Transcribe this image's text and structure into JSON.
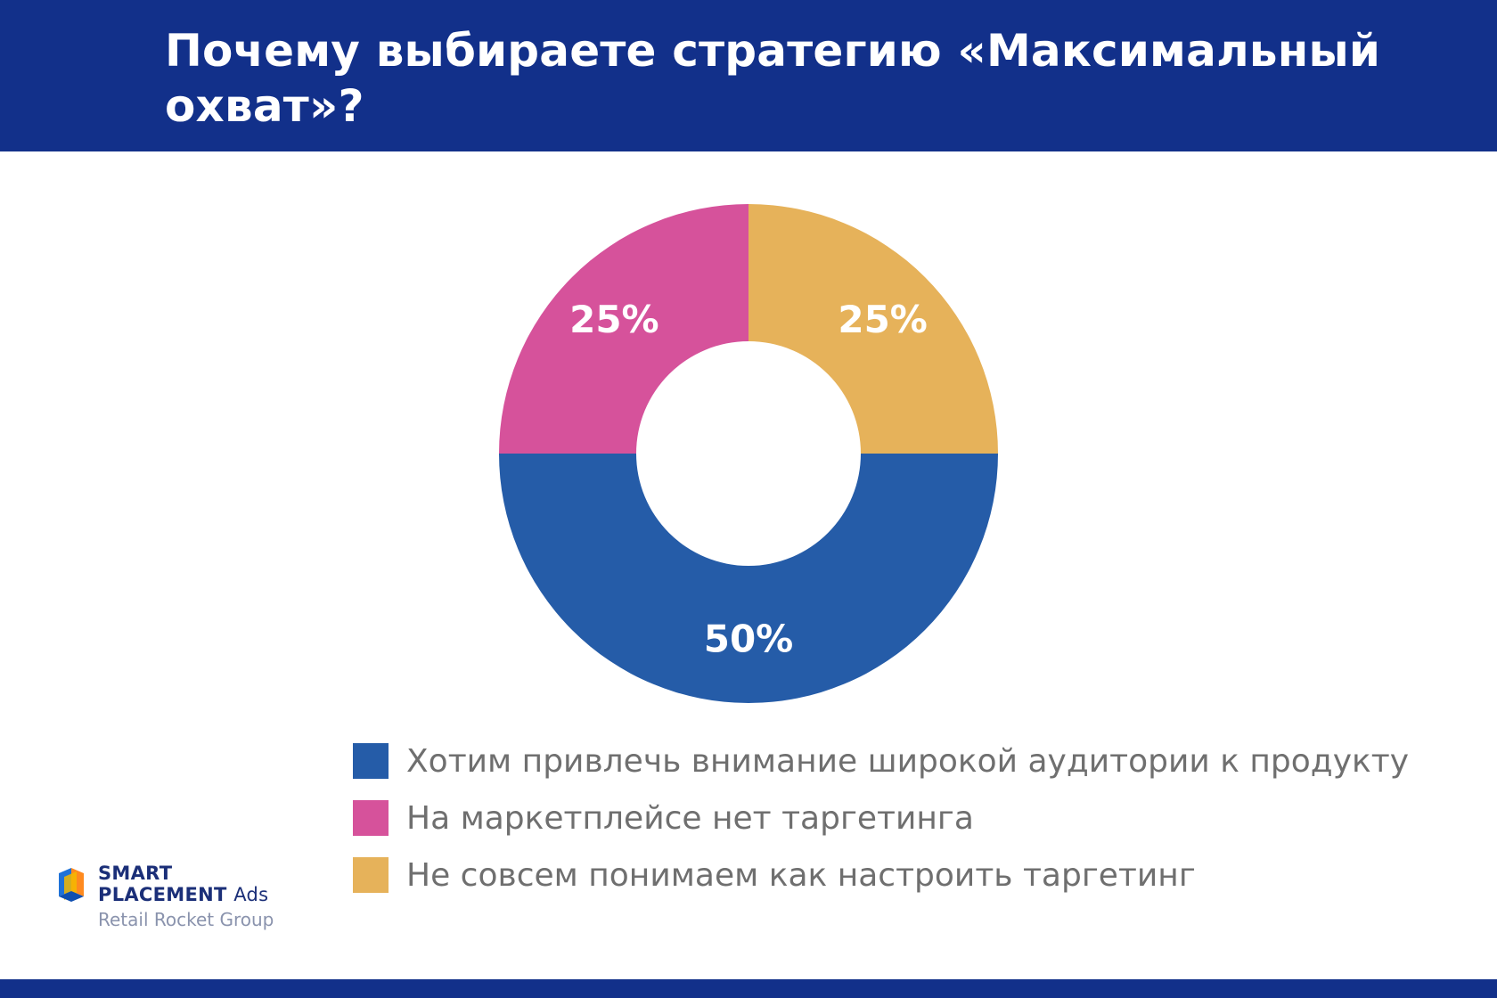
{
  "header": {
    "title": "Почему выбираете стратегию «Максимальный охват»?"
  },
  "chart_data": {
    "type": "pie",
    "donut": true,
    "title": "",
    "categories": [
      "Не совсем понимаем как настроить таргетинг",
      "Хотим привлечь внимание широкой аудитории к продукту",
      "На маркетплейсе нет таргетинга"
    ],
    "values": [
      25,
      50,
      25
    ],
    "labels": [
      "25%",
      "50%",
      "25%"
    ],
    "colors": [
      "#e6b25a",
      "#255ca8",
      "#d6529b"
    ],
    "legend_placement": "bottom"
  },
  "legend": {
    "items": [
      {
        "label": "Хотим привлечь внимание широкой аудитории к продукту",
        "color": "#255ca8"
      },
      {
        "label": "На маркетплейсе нет таргетинга",
        "color": "#d6529b"
      },
      {
        "label": "Не совсем понимаем как настроить таргетинг",
        "color": "#e6b25a"
      }
    ]
  },
  "logo": {
    "line1": "SMART",
    "line2": "PLACEMENT",
    "line2_suffix": "Ads",
    "line3": "Retail Rocket Group"
  },
  "colors": {
    "header_bg": "#12308a",
    "text_gray": "#6f6f6f"
  }
}
